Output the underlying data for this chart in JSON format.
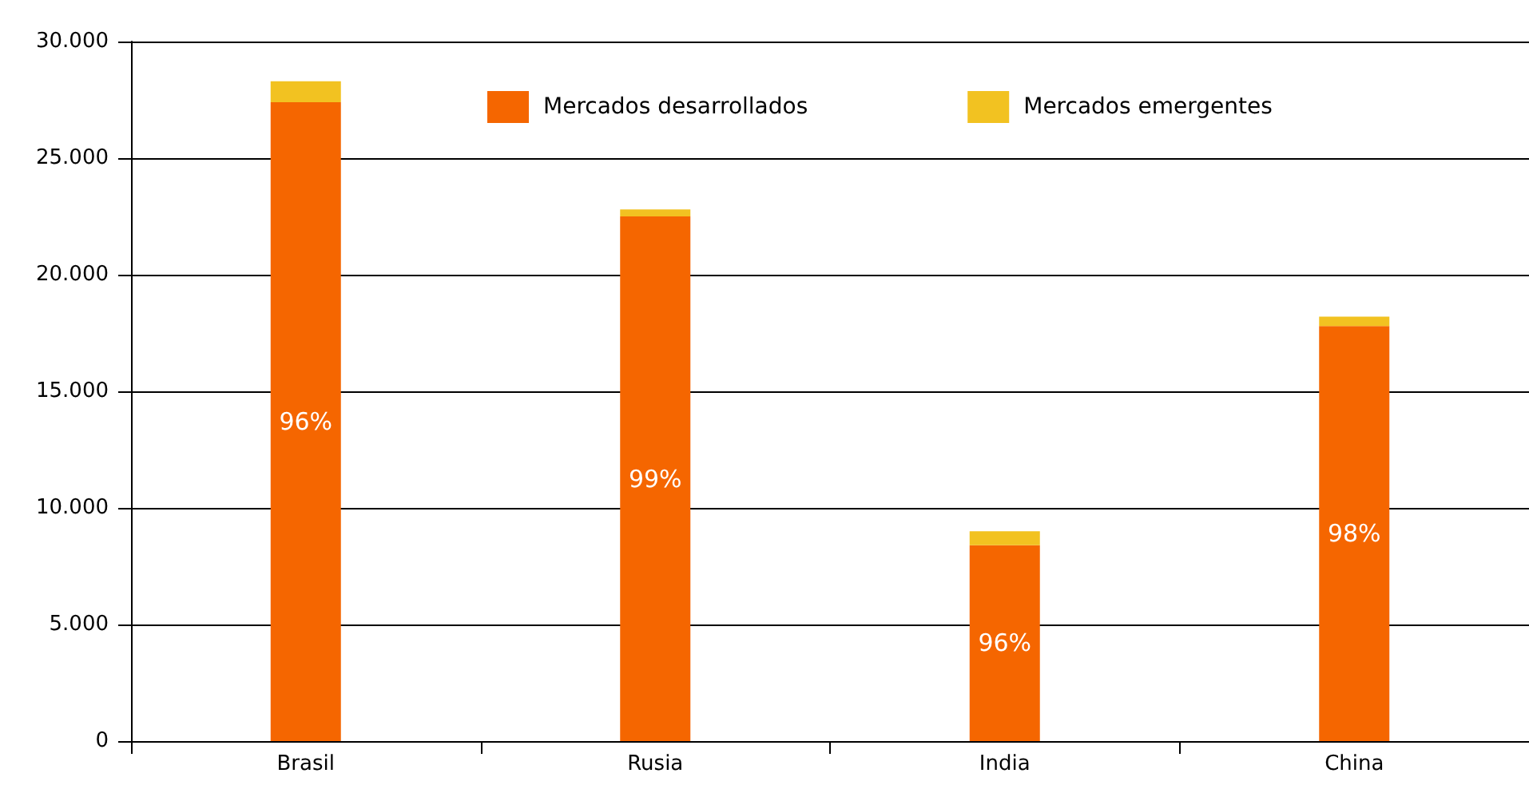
{
  "chart_data": {
    "type": "bar",
    "stacked": true,
    "categories": [
      "Brasil",
      "Rusia",
      "India",
      "China"
    ],
    "series": [
      {
        "name": "Mercados desarrollados",
        "color": "#f56600",
        "values": [
          27400,
          22500,
          8400,
          17800
        ]
      },
      {
        "name": "Mercados emergentes",
        "color": "#f2c221",
        "values": [
          900,
          300,
          600,
          400
        ]
      }
    ],
    "annotations": [
      "96%",
      "99%",
      "96%",
      "98%"
    ],
    "ylim": [
      0,
      30000
    ],
    "yticks": [
      {
        "value": 0,
        "label": "0"
      },
      {
        "value": 5000,
        "label": "5.000"
      },
      {
        "value": 10000,
        "label": "10.000"
      },
      {
        "value": 15000,
        "label": "15.000"
      },
      {
        "value": 20000,
        "label": "20.000"
      },
      {
        "value": 25000,
        "label": "25.000"
      },
      {
        "value": 30000,
        "label": "30.000"
      }
    ],
    "grid": "y",
    "legend": "top"
  }
}
